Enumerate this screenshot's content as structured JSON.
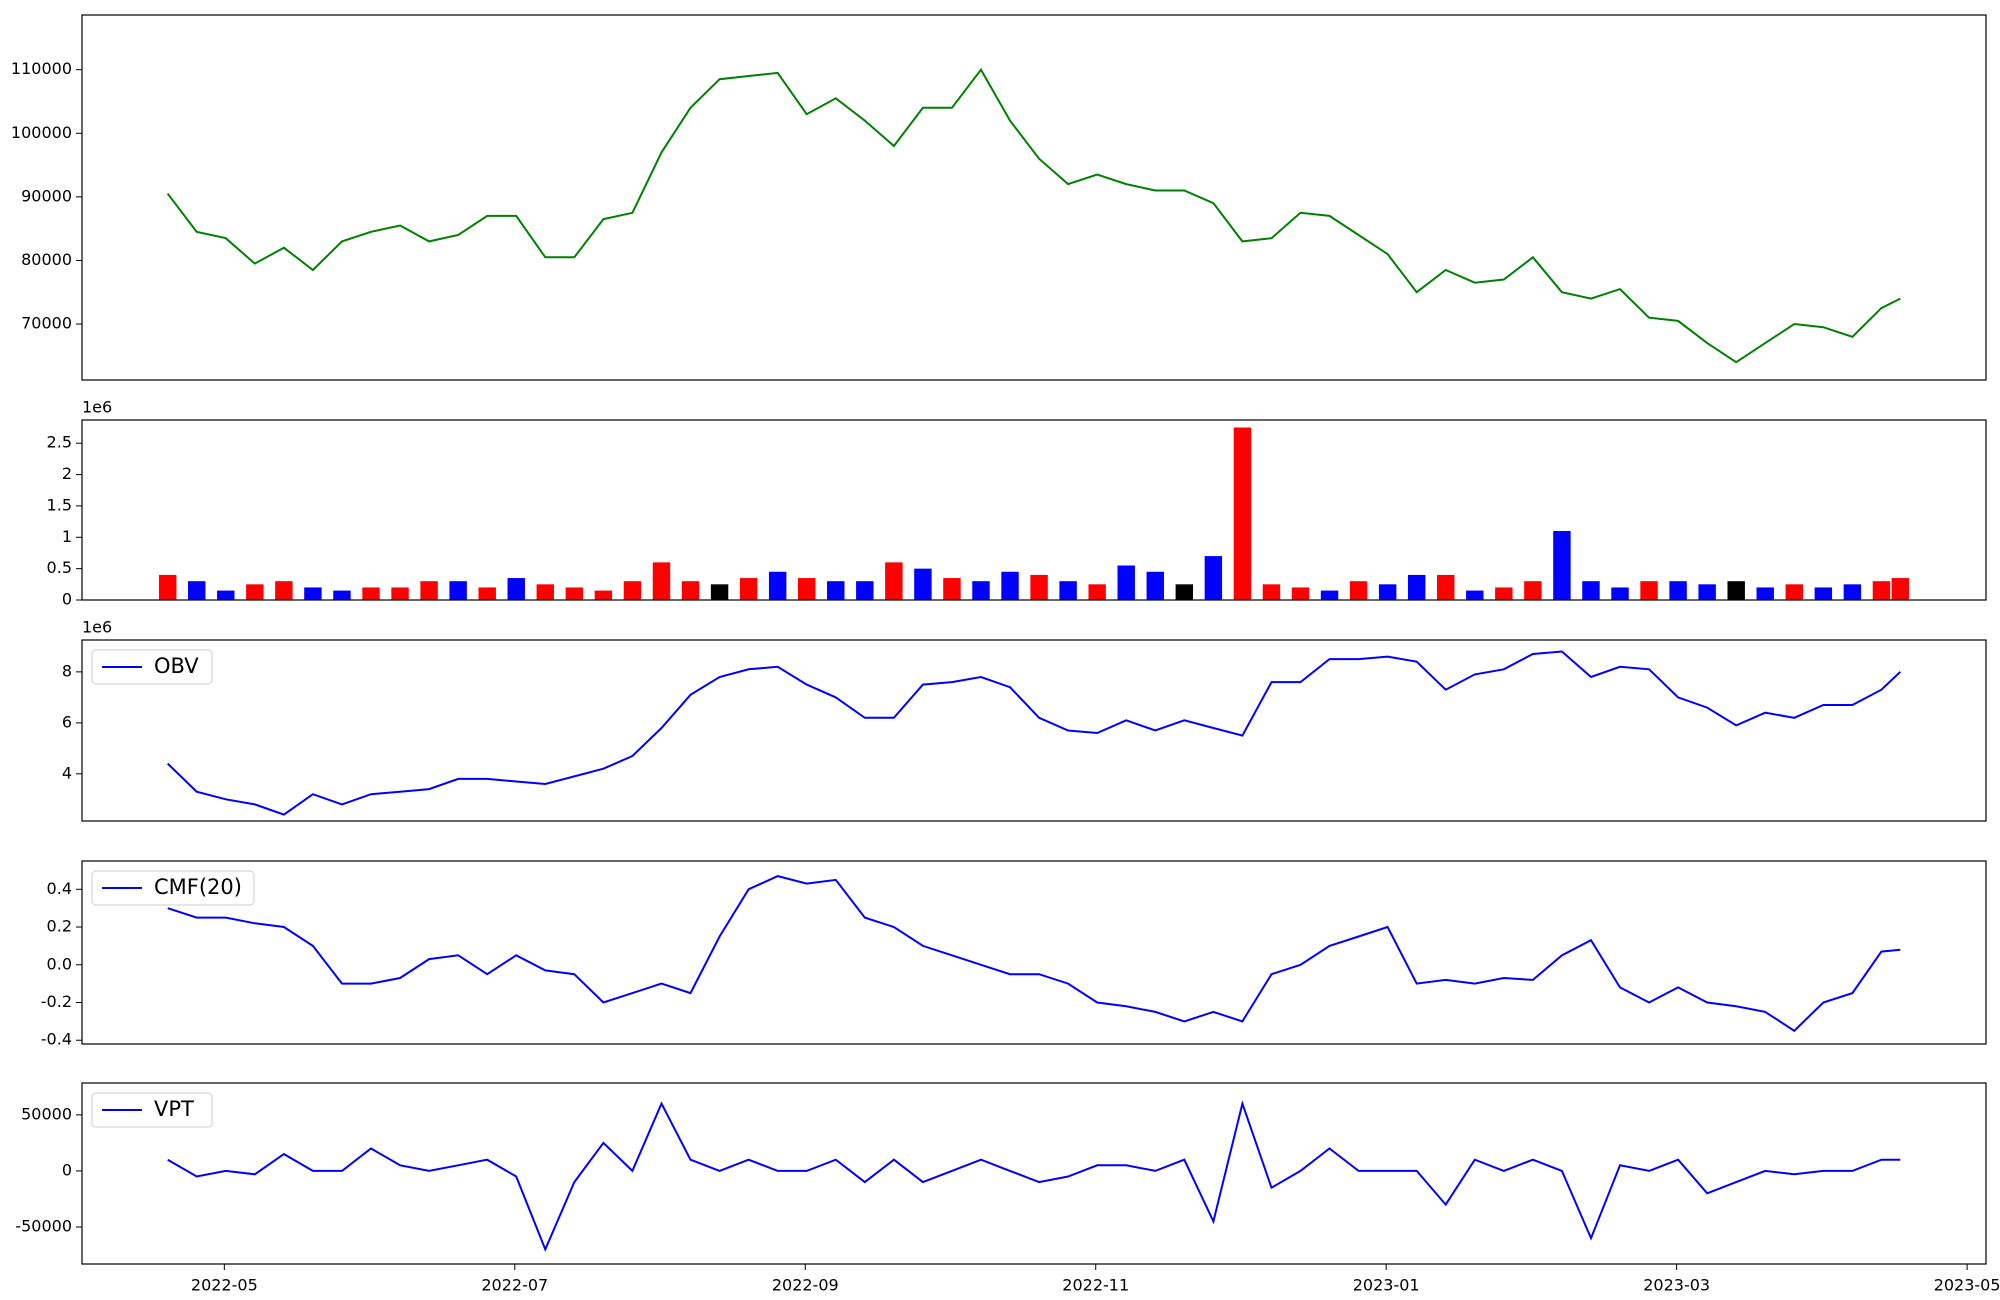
{
  "chart_data": [
    {
      "type": "line",
      "color": "green",
      "x": [
        -0.39,
        -0.19,
        0.01,
        0.21,
        0.41,
        0.61,
        0.81,
        1.01,
        1.21,
        1.41,
        1.61,
        1.81,
        2.01,
        2.21,
        2.41,
        2.61,
        2.81,
        3.01,
        3.21,
        3.41,
        3.61,
        3.81,
        4.01,
        4.21,
        4.41,
        4.61,
        4.81,
        5.01,
        5.21,
        5.41,
        5.61,
        5.81,
        6.01,
        6.21,
        6.41,
        6.61,
        6.81,
        7.01,
        7.21,
        7.41,
        7.61,
        7.81,
        8.01,
        8.21,
        8.41,
        8.61,
        8.81,
        9.01,
        9.21,
        9.41,
        9.61,
        9.81,
        10.01,
        10.21,
        10.41,
        10.61,
        10.81,
        11.01,
        11.21,
        11.41,
        11.54
      ],
      "values": [
        90500,
        84500,
        83500,
        79500,
        82000,
        78500,
        83000,
        84500,
        85500,
        83000,
        84000,
        87000,
        87000,
        80500,
        80500,
        86500,
        87500,
        97000,
        104000,
        108500,
        109000,
        109500,
        103000,
        105500,
        102000,
        98000,
        104000,
        104000,
        110000,
        102000,
        96000,
        92000,
        93500,
        92000,
        91000,
        91000,
        89000,
        83000,
        83500,
        87500,
        87000,
        84000,
        81000,
        75000,
        78500,
        76500,
        77000,
        80500,
        75000,
        74000,
        75500,
        71000,
        70500,
        67000,
        64000,
        67000,
        70000,
        69500,
        68000,
        72500,
        74000
      ],
      "xlim": [
        -0.98,
        12.13
      ],
      "ylim": [
        61200,
        118600
      ],
      "yticks": [
        70000,
        80000,
        90000,
        100000,
        110000
      ]
    },
    {
      "type": "bar",
      "offset_label": "1e6",
      "x": [
        -0.39,
        -0.19,
        0.01,
        0.21,
        0.41,
        0.61,
        0.81,
        1.01,
        1.21,
        1.41,
        1.61,
        1.81,
        2.01,
        2.21,
        2.41,
        2.61,
        2.81,
        3.01,
        3.21,
        3.41,
        3.61,
        3.81,
        4.01,
        4.21,
        4.41,
        4.61,
        4.81,
        5.01,
        5.21,
        5.41,
        5.61,
        5.81,
        6.01,
        6.21,
        6.41,
        6.61,
        6.81,
        7.01,
        7.21,
        7.41,
        7.61,
        7.81,
        8.01,
        8.21,
        8.41,
        8.61,
        8.81,
        9.01,
        9.21,
        9.41,
        9.61,
        9.81,
        10.01,
        10.21,
        10.41,
        10.61,
        10.81,
        11.01,
        11.21,
        11.41,
        11.54
      ],
      "values": [
        0.4,
        0.3,
        0.15,
        0.25,
        0.3,
        0.2,
        0.15,
        0.2,
        0.2,
        0.3,
        0.3,
        0.2,
        0.35,
        0.25,
        0.2,
        0.15,
        0.3,
        0.6,
        0.3,
        0.25,
        0.35,
        0.45,
        0.35,
        0.3,
        0.3,
        0.6,
        0.5,
        0.35,
        0.3,
        0.45,
        0.4,
        0.3,
        0.25,
        0.55,
        0.45,
        0.25,
        0.7,
        2.75,
        0.25,
        0.2,
        0.15,
        0.3,
        0.25,
        0.4,
        0.4,
        0.15,
        0.2,
        0.3,
        1.1,
        0.3,
        0.2,
        0.3,
        0.3,
        0.25,
        0.3,
        0.2,
        0.25,
        0.2,
        0.25,
        0.3,
        0.35
      ],
      "colors": [
        "red",
        "blue",
        "blue",
        "red",
        "red",
        "blue",
        "blue",
        "red",
        "red",
        "red",
        "blue",
        "red",
        "blue",
        "red",
        "red",
        "red",
        "red",
        "red",
        "red",
        "black",
        "red",
        "blue",
        "red",
        "blue",
        "blue",
        "red",
        "blue",
        "red",
        "blue",
        "blue",
        "red",
        "blue",
        "red",
        "blue",
        "blue",
        "black",
        "blue",
        "red",
        "red",
        "red",
        "blue",
        "red",
        "blue",
        "blue",
        "red",
        "blue",
        "red",
        "red",
        "blue",
        "blue",
        "blue",
        "red",
        "blue",
        "blue",
        "black",
        "blue",
        "red",
        "blue",
        "blue",
        "red",
        "red"
      ],
      "xlim": [
        -0.98,
        12.13
      ],
      "ylim": [
        0,
        2.87
      ],
      "yticks": [
        0.0,
        0.5,
        1.0,
        1.5,
        2.0,
        2.5
      ]
    },
    {
      "type": "line",
      "offset_label": "1e6",
      "x": [
        -0.39,
        -0.19,
        0.01,
        0.21,
        0.41,
        0.61,
        0.81,
        1.01,
        1.21,
        1.41,
        1.61,
        1.81,
        2.01,
        2.21,
        2.41,
        2.61,
        2.81,
        3.01,
        3.21,
        3.41,
        3.61,
        3.81,
        4.01,
        4.21,
        4.41,
        4.61,
        4.81,
        5.01,
        5.21,
        5.41,
        5.61,
        5.81,
        6.01,
        6.21,
        6.41,
        6.61,
        6.81,
        7.01,
        7.21,
        7.41,
        7.61,
        7.81,
        8.01,
        8.21,
        8.41,
        8.61,
        8.81,
        9.01,
        9.21,
        9.41,
        9.61,
        9.81,
        10.01,
        10.21,
        10.41,
        10.61,
        10.81,
        11.01,
        11.21,
        11.41,
        11.54
      ],
      "series": [
        {
          "name": "OBV",
          "color": "blue",
          "values": [
            4.4,
            3.3,
            3.0,
            2.8,
            2.4,
            3.2,
            2.8,
            3.2,
            3.3,
            3.4,
            3.8,
            3.8,
            3.7,
            3.6,
            3.9,
            4.2,
            4.7,
            5.8,
            7.1,
            7.8,
            8.1,
            8.2,
            7.5,
            7.0,
            6.2,
            6.2,
            7.5,
            7.6,
            7.8,
            7.4,
            6.2,
            5.7,
            5.6,
            6.1,
            5.7,
            6.1,
            5.8,
            5.5,
            7.6,
            7.6,
            8.5,
            8.5,
            8.6,
            8.4,
            7.3,
            7.9,
            8.1,
            8.7,
            8.8,
            7.8,
            8.2,
            8.1,
            7.0,
            6.6,
            5.9,
            6.4,
            6.2,
            6.7,
            6.7,
            7.3,
            8.0
          ]
        }
      ],
      "legend": "upper left",
      "xlim": [
        -0.98,
        12.13
      ],
      "ylim": [
        2.15,
        9.25
      ],
      "yticks": [
        4,
        6,
        8
      ]
    },
    {
      "type": "line",
      "x": [
        -0.39,
        -0.19,
        0.01,
        0.21,
        0.41,
        0.61,
        0.81,
        1.01,
        1.21,
        1.41,
        1.61,
        1.81,
        2.01,
        2.21,
        2.41,
        2.61,
        2.81,
        3.01,
        3.21,
        3.41,
        3.61,
        3.81,
        4.01,
        4.21,
        4.41,
        4.61,
        4.81,
        5.01,
        5.21,
        5.41,
        5.61,
        5.81,
        6.01,
        6.21,
        6.41,
        6.61,
        6.81,
        7.01,
        7.21,
        7.41,
        7.61,
        7.81,
        8.01,
        8.21,
        8.41,
        8.61,
        8.81,
        9.01,
        9.21,
        9.41,
        9.61,
        9.81,
        10.01,
        10.21,
        10.41,
        10.61,
        10.81,
        11.01,
        11.21,
        11.41,
        11.54
      ],
      "series": [
        {
          "name": "CMF(20)",
          "color": "blue",
          "values": [
            0.3,
            0.25,
            0.25,
            0.22,
            0.2,
            0.1,
            -0.1,
            -0.1,
            -0.07,
            0.03,
            0.05,
            -0.05,
            0.05,
            -0.03,
            -0.05,
            -0.2,
            -0.15,
            -0.1,
            -0.15,
            0.15,
            0.4,
            0.47,
            0.43,
            0.45,
            0.25,
            0.2,
            0.1,
            0.05,
            0.0,
            -0.05,
            -0.05,
            -0.1,
            -0.2,
            -0.22,
            -0.25,
            -0.3,
            -0.25,
            -0.3,
            -0.05,
            0.0,
            0.1,
            0.15,
            0.2,
            -0.1,
            -0.08,
            -0.1,
            -0.07,
            -0.08,
            0.05,
            0.13,
            -0.12,
            -0.2,
            -0.12,
            -0.2,
            -0.22,
            -0.25,
            -0.35,
            -0.2,
            -0.15,
            0.07,
            0.08
          ]
        }
      ],
      "legend": "upper left",
      "xlim": [
        -0.98,
        12.13
      ],
      "ylim": [
        -0.42,
        0.55
      ],
      "yticks": [
        -0.4,
        -0.2,
        {
          "value": 0,
          "label": "0.0"
        },
        0.2,
        0.4
      ]
    },
    {
      "type": "line",
      "x": [
        -0.39,
        -0.19,
        0.01,
        0.21,
        0.41,
        0.61,
        0.81,
        1.01,
        1.21,
        1.41,
        1.61,
        1.81,
        2.01,
        2.21,
        2.41,
        2.61,
        2.81,
        3.01,
        3.21,
        3.41,
        3.61,
        3.81,
        4.01,
        4.21,
        4.41,
        4.61,
        4.81,
        5.01,
        5.21,
        5.41,
        5.61,
        5.81,
        6.01,
        6.21,
        6.41,
        6.61,
        6.81,
        7.01,
        7.21,
        7.41,
        7.61,
        7.81,
        8.01,
        8.21,
        8.41,
        8.61,
        8.81,
        9.01,
        9.21,
        9.41,
        9.61,
        9.81,
        10.01,
        10.21,
        10.41,
        10.61,
        10.81,
        11.01,
        11.21,
        11.41,
        11.54
      ],
      "series": [
        {
          "name": "VPT",
          "color": "blue",
          "values": [
            10000,
            -5000,
            0,
            -3000,
            15000,
            0,
            0,
            20000,
            5000,
            0,
            5000,
            10000,
            -5000,
            -70000,
            -10000,
            25000,
            0,
            60000,
            10000,
            0,
            10000,
            0,
            0,
            10000,
            -10000,
            10000,
            -10000,
            0,
            10000,
            0,
            -10000,
            -5000,
            5000,
            5000,
            0,
            10000,
            -45000,
            60000,
            -15000,
            0,
            20000,
            0,
            0,
            0,
            -30000,
            10000,
            0,
            10000,
            0,
            -60000,
            5000,
            0,
            10000,
            -20000,
            -10000,
            0,
            -3000,
            0,
            0,
            10000,
            10000
          ]
        }
      ],
      "legend": "upper left",
      "xlim": [
        -0.98,
        12.13
      ],
      "ylim": [
        -83000,
        78400
      ],
      "yticks": [
        -50000,
        0,
        50000
      ],
      "xticks": [
        {
          "value": 0,
          "label": "2022-05"
        },
        {
          "value": 2,
          "label": "2022-07"
        },
        {
          "value": 4,
          "label": "2022-09"
        },
        {
          "value": 6,
          "label": "2022-11"
        },
        {
          "value": 8,
          "label": "2023-01"
        },
        {
          "value": 10,
          "label": "2023-03"
        },
        {
          "value": 12,
          "label": "2023-05"
        }
      ]
    }
  ]
}
